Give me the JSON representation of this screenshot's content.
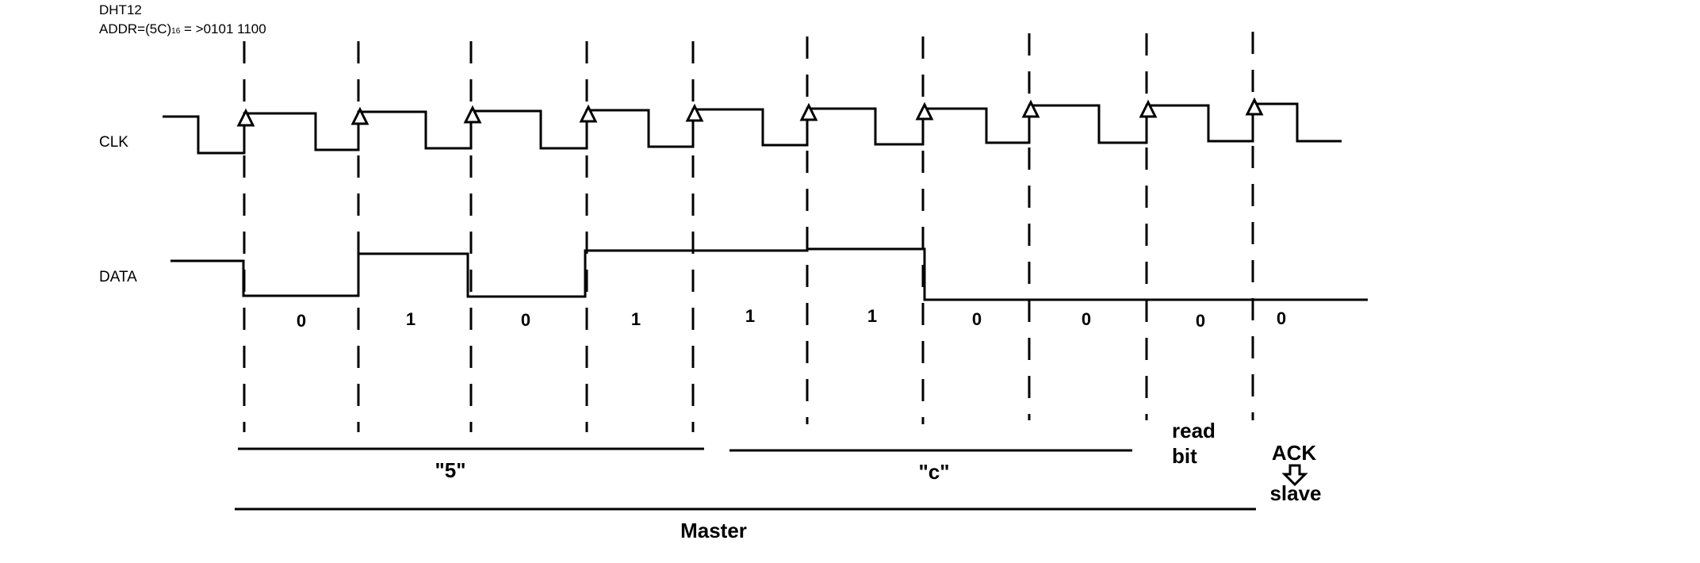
{
  "header": {
    "device": "DHT12",
    "address_prefix": "ADDR=(5C)",
    "address_subscript": "16",
    "address_suffix": " = >0101 1100"
  },
  "signals": {
    "clk_label": "CLK",
    "data_label": "DATA"
  },
  "bits": [
    "0",
    "1",
    "0",
    "1",
    "1",
    "1",
    "0",
    "0",
    "0",
    "0"
  ],
  "groups": {
    "nibble_high": "\"5\"",
    "nibble_low": "\"c\"",
    "read_bit_line1": "read",
    "read_bit_line2": "bit",
    "ack": "ACK",
    "slave": "slave",
    "master": "Master"
  },
  "colors": {
    "ink": "#000000",
    "background": "#ffffff"
  }
}
